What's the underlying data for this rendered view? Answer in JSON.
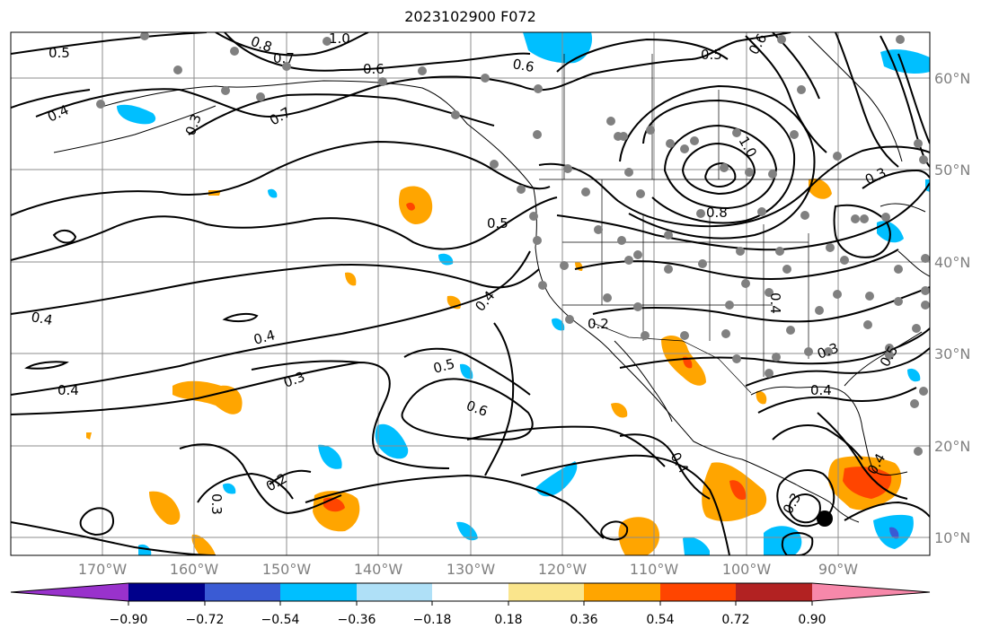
{
  "title": "2023102900 F072",
  "lon_labels": [
    "170°W",
    "160°W",
    "150°W",
    "140°W",
    "130°W",
    "120°W",
    "110°W",
    "100°W",
    "90°W"
  ],
  "lat_labels": [
    "60°N",
    "50°N",
    "40°N",
    "30°N",
    "20°N",
    "10°N"
  ],
  "contour_labels": [
    "0.5",
    "0.8",
    "0.7",
    "1.0",
    "0.6",
    "0.6",
    "0.5",
    "0.6",
    "0.4",
    "0.7",
    "0.3",
    "1.0",
    "0.3",
    "0.8",
    "0.5",
    "0.4",
    "0.4",
    "0.4",
    "0.2",
    "0.4",
    "0.3",
    "0.4",
    "0.3",
    "0.4",
    "0.5",
    "0.6",
    "0.4",
    "0.2",
    "0.3",
    "0.3",
    "0.4",
    "0.5"
  ],
  "colorbar": {
    "tick_labels": [
      "−0.90",
      "−0.72",
      "−0.54",
      "−0.36",
      "−0.18",
      "0.18",
      "0.36",
      "0.54",
      "0.72",
      "0.90"
    ],
    "colors": [
      "#9932cc",
      "#00008b",
      "#3a5bd4",
      "#00bfff",
      "#afe0f7",
      "#ffffff",
      "#fae58c",
      "#ffa500",
      "#ff4500",
      "#b22222",
      "#f788aa"
    ]
  },
  "colors": {
    "frame": "#000000",
    "grid": "#8c8c8c",
    "station_dots": "#808080",
    "contours": "#000000"
  }
}
